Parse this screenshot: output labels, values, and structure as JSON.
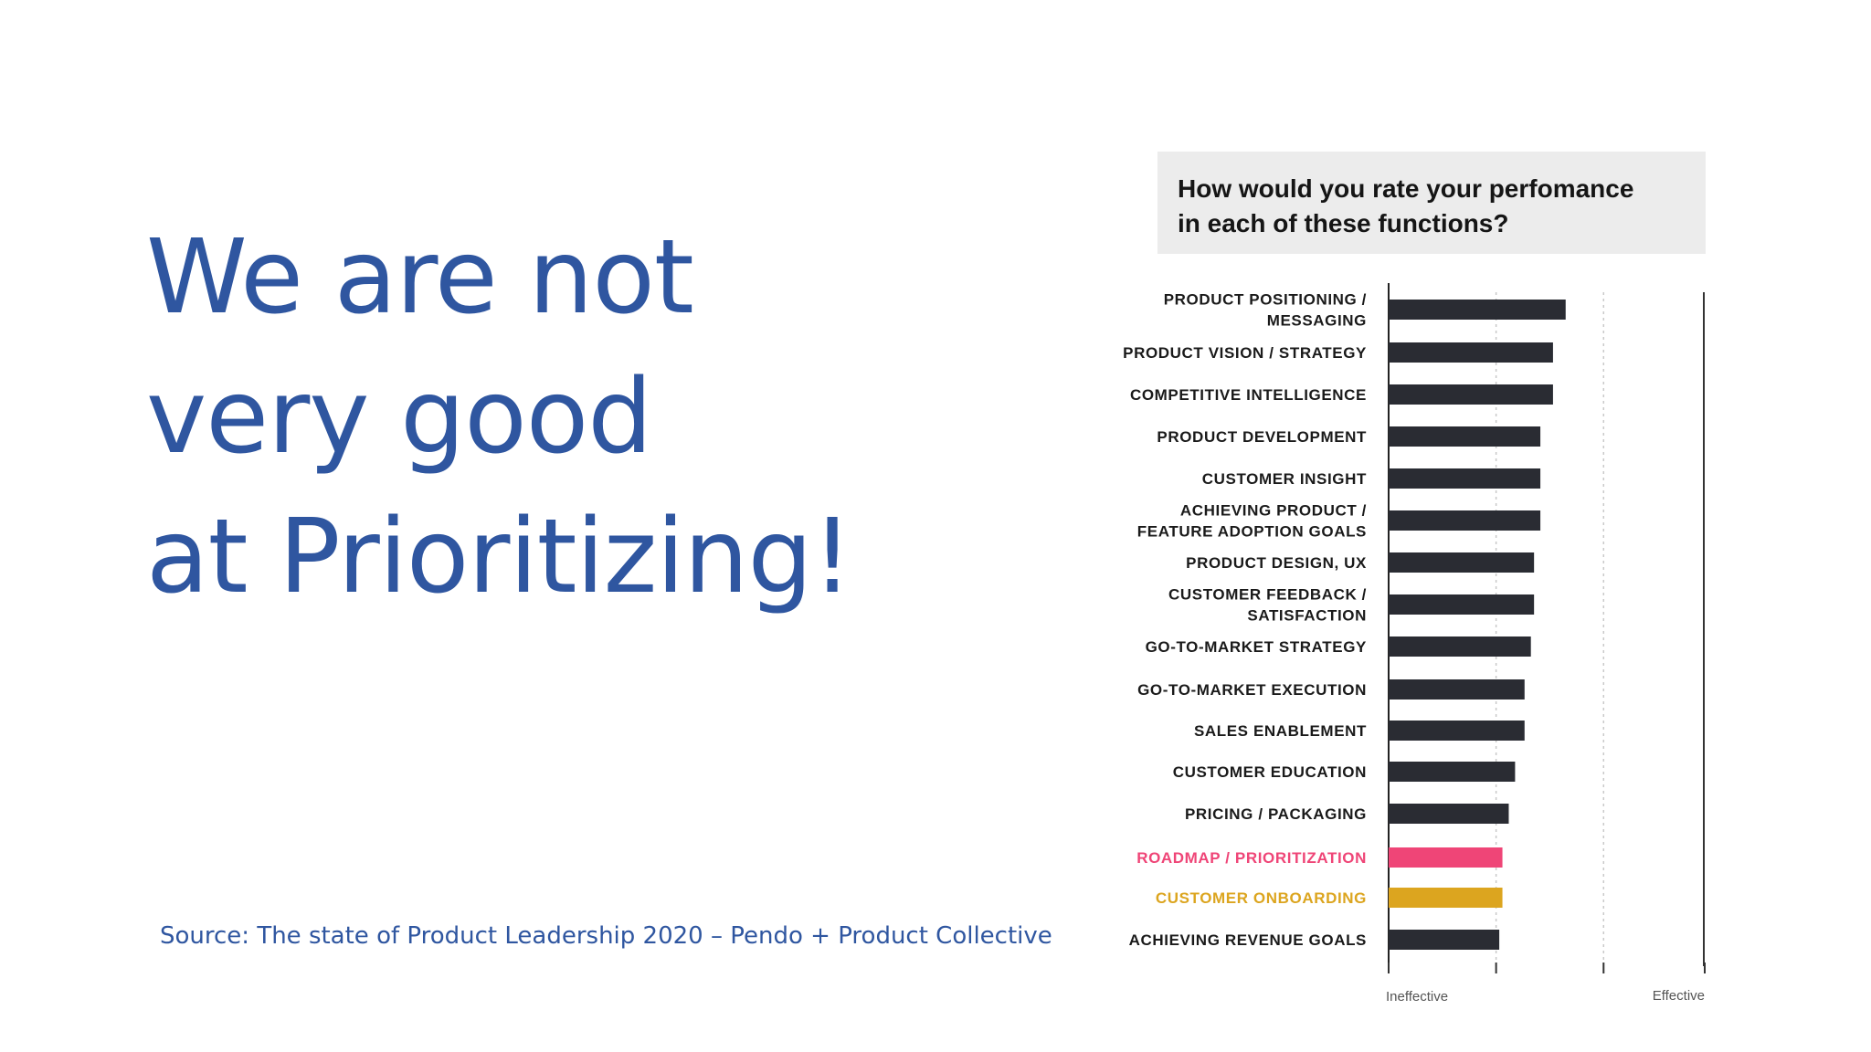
{
  "slide": {
    "headline_lines": [
      "We are not",
      "very good",
      "at Prioritizing!"
    ],
    "source": "Source: The state of Product Leadership 2020 – Pendo + Product Collective"
  },
  "colors": {
    "headline": "#2f56a0",
    "bar_default": "#2a2c33",
    "bar_highlight_pink": "#ef4577",
    "bar_highlight_gold": "#dca51f"
  },
  "chart_data": {
    "type": "bar",
    "orientation": "horizontal",
    "title": "How would you rate your perfomance in each of these functions?",
    "title_lines": [
      "How would you rate your perfomance",
      "in each of these functions?"
    ],
    "categories": [
      [
        "PRODUCT POSITIONING /",
        "MESSAGING"
      ],
      [
        "PRODUCT VISION / STRATEGY"
      ],
      [
        "COMPETITIVE INTELLIGENCE"
      ],
      [
        "PRODUCT DEVELOPMENT"
      ],
      [
        "CUSTOMER INSIGHT"
      ],
      [
        "ACHIEVING PRODUCT /",
        "FEATURE ADOPTION GOALS"
      ],
      [
        "PRODUCT DESIGN, UX"
      ],
      [
        "CUSTOMER FEEDBACK /",
        "SATISFACTION"
      ],
      [
        "GO-TO-MARKET STRATEGY"
      ],
      [
        "GO-TO-MARKET EXECUTION"
      ],
      [
        "SALES ENABLEMENT"
      ],
      [
        "CUSTOMER EDUCATION"
      ],
      [
        "PRICING / PACKAGING"
      ],
      [
        "ROADMAP / PRIORITIZATION"
      ],
      [
        "CUSTOMER ONBOARDING"
      ],
      [
        "ACHIEVING REVENUE GOALS"
      ]
    ],
    "values": [
      0.56,
      0.52,
      0.52,
      0.48,
      0.48,
      0.48,
      0.46,
      0.46,
      0.45,
      0.43,
      0.43,
      0.4,
      0.38,
      0.36,
      0.36,
      0.35
    ],
    "highlights": {
      "13": "pink",
      "14": "gold"
    },
    "xlim": [
      0,
      1
    ],
    "x_tick_labels": {
      "min": "Ineffective",
      "max": "Effective"
    },
    "grid": "vertical dotted"
  }
}
